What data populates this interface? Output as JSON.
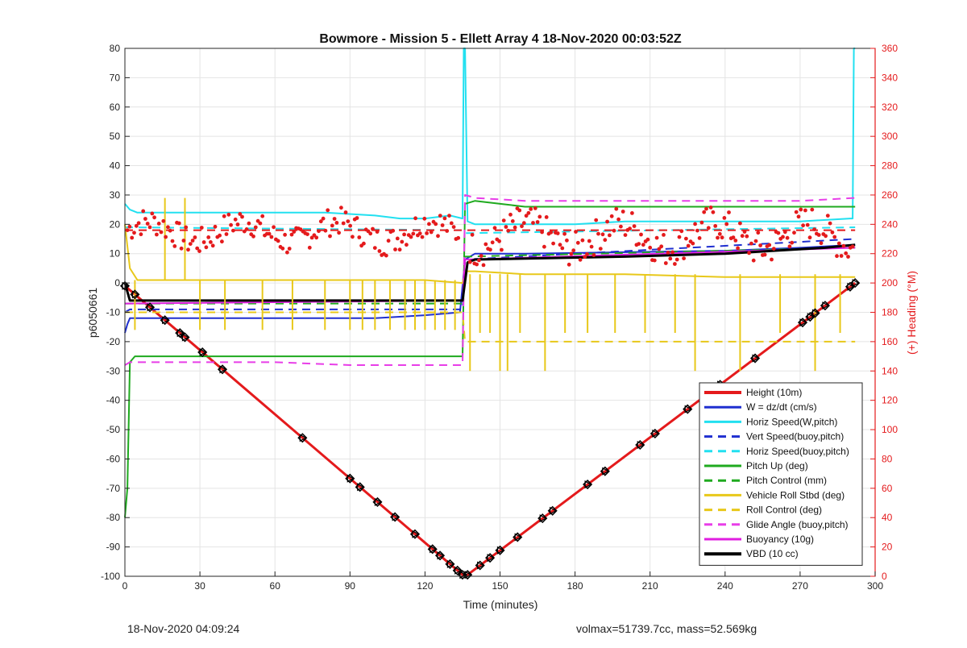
{
  "chart_data": {
    "type": "line",
    "title": "Bowmore - Mission 5 - Ellett Array 4 18-Nov-2020 00:03:52Z",
    "xlabel": "Time (minutes)",
    "ylabel": "p6050661",
    "y2label": "(+) Heading (°M)",
    "xlim": [
      0,
      300
    ],
    "ylim": [
      -100,
      80
    ],
    "y2lim": [
      0,
      360
    ],
    "xticks": [
      0,
      30,
      60,
      90,
      120,
      150,
      180,
      210,
      240,
      270,
      300
    ],
    "yticks": [
      -100,
      -90,
      -80,
      -70,
      -60,
      -50,
      -40,
      -30,
      -20,
      -10,
      0,
      10,
      20,
      30,
      40,
      50,
      60,
      70,
      80
    ],
    "y2ticks": [
      0,
      20,
      40,
      60,
      80,
      100,
      120,
      140,
      160,
      180,
      200,
      220,
      240,
      260,
      280,
      300,
      320,
      340,
      360
    ],
    "grid": true,
    "legend_position": "lower-right",
    "series": [
      {
        "name": "Height (10m)",
        "color": "#e41a1c",
        "style": "solid",
        "width": 3,
        "x": [
          0,
          135,
          137,
          292
        ],
        "y": [
          -1,
          -99.5,
          -99.5,
          0
        ]
      },
      {
        "name": "W = dz/dt (cm/s)",
        "color": "#1f2fd0",
        "style": "solid",
        "width": 2,
        "x": [
          0,
          1,
          2,
          5,
          15,
          40,
          70,
          100,
          120,
          134,
          136,
          140,
          160,
          200,
          240,
          270,
          292
        ],
        "y": [
          -17,
          -14,
          -12,
          -12,
          -12,
          -12,
          -12,
          -12,
          -11,
          -10,
          8,
          10,
          10,
          10.5,
          11,
          12,
          13
        ]
      },
      {
        "name": "Horiz Speed(W,pitch)",
        "color": "#22e0f0",
        "style": "solid",
        "width": 2,
        "x": [
          0,
          2,
          5,
          20,
          40,
          60,
          80,
          100,
          110,
          120,
          130,
          135,
          135.5,
          136,
          137,
          140,
          160,
          180,
          200,
          240,
          270,
          290,
          291,
          291.5,
          292
        ],
        "y": [
          27,
          25,
          24,
          24,
          24,
          24,
          24,
          23,
          22,
          22,
          23,
          22,
          80,
          80,
          21,
          20,
          20,
          20,
          21,
          21,
          21,
          22,
          22,
          80,
          80
        ]
      },
      {
        "name": "Vert Speed(buoy,pitch)",
        "color": "#1f2fd0",
        "style": "dashed",
        "width": 2,
        "x": [
          0,
          2,
          135,
          136,
          292
        ],
        "y": [
          -10,
          -9,
          -9,
          8,
          15
        ]
      },
      {
        "name": "Horiz Speed(buoy,pitch)",
        "color": "#22e0f0",
        "style": "dashed",
        "width": 2,
        "x": [
          0,
          135,
          136,
          292
        ],
        "y": [
          19,
          18,
          17,
          19
        ]
      },
      {
        "name": "Pitch Up (deg)",
        "color": "#1faa1f",
        "style": "solid",
        "width": 2,
        "x": [
          0,
          1,
          2,
          4,
          10,
          40,
          70,
          100,
          120,
          135,
          136,
          140,
          160,
          200,
          240,
          270,
          292
        ],
        "y": [
          -80,
          -70,
          -27,
          -25,
          -25,
          -25,
          -25,
          -25,
          -25,
          -25,
          27,
          28,
          26,
          26,
          26,
          26,
          26
        ]
      },
      {
        "name": "Pitch Control (mm)",
        "color": "#1faa1f",
        "style": "dashed",
        "width": 2,
        "x": [
          0,
          135,
          136,
          292
        ],
        "y": [
          -7,
          -7,
          9,
          12
        ]
      },
      {
        "name": "Vehicle Roll Stbd (deg)",
        "color": "#e8c81a",
        "style": "solid",
        "width": 2,
        "x": [
          0,
          2,
          5,
          20,
          40,
          60,
          80,
          100,
          120,
          135,
          136,
          140,
          160,
          200,
          240,
          270,
          292
        ],
        "y": [
          20,
          5,
          1,
          1,
          1,
          1,
          1,
          1,
          1,
          0,
          4,
          4,
          3,
          3,
          2,
          2,
          2
        ]
      },
      {
        "name": "Roll Control (deg)",
        "color": "#e8c81a",
        "style": "dashed",
        "width": 2,
        "x": [
          0,
          135,
          136,
          292
        ],
        "y": [
          -10,
          -10,
          -20,
          -20
        ]
      },
      {
        "name": "Glide Angle (buoy,pitch)",
        "color": "#e83ee8",
        "style": "dashed",
        "width": 2,
        "x": [
          0,
          2,
          5,
          30,
          60,
          90,
          120,
          135,
          136,
          140,
          160,
          200,
          240,
          270,
          292
        ],
        "y": [
          -28,
          -27,
          -27,
          -27,
          -27,
          -28,
          -28,
          -28,
          30,
          29,
          28,
          28,
          28,
          28,
          29
        ]
      },
      {
        "name": "Buoyancy (10g)",
        "color": "#e01ee0",
        "style": "solid",
        "width": 2,
        "x": [
          0,
          135,
          136,
          292
        ],
        "y": [
          -7,
          -6,
          8,
          12
        ]
      },
      {
        "name": "VBD (10 cc)",
        "color": "#000000",
        "style": "solid",
        "width": 3,
        "x": [
          0,
          1,
          2,
          135,
          137,
          140,
          200,
          240,
          280,
          292
        ],
        "y": [
          0,
          -3,
          -6,
          -6,
          7,
          8,
          9,
          10,
          12,
          13
        ]
      }
    ],
    "height_markers_x": [
      0,
      4,
      10,
      16,
      22,
      24,
      31,
      39,
      71,
      90,
      94,
      101,
      108,
      116,
      123,
      126,
      130,
      133,
      135,
      137,
      142,
      146,
      150,
      157,
      167,
      171,
      185,
      192,
      206,
      212,
      225,
      232,
      238,
      252,
      271,
      274,
      276,
      280,
      290,
      292
    ],
    "heading_dots": {
      "color": "#e41a1c",
      "axis": "right",
      "segments": [
        {
          "x0": 1,
          "x1": 134,
          "base": 235,
          "amp": 12
        },
        {
          "x0": 138,
          "x1": 291,
          "base": 232,
          "amp": 15
        }
      ],
      "ref_lines": [
        {
          "x0": 0,
          "x1": 292,
          "y": 236
        }
      ]
    }
  },
  "footer": {
    "timestamp": "18-Nov-2020 04:09:24",
    "stats": "volmax=51739.7cc, mass=52.569kg"
  }
}
